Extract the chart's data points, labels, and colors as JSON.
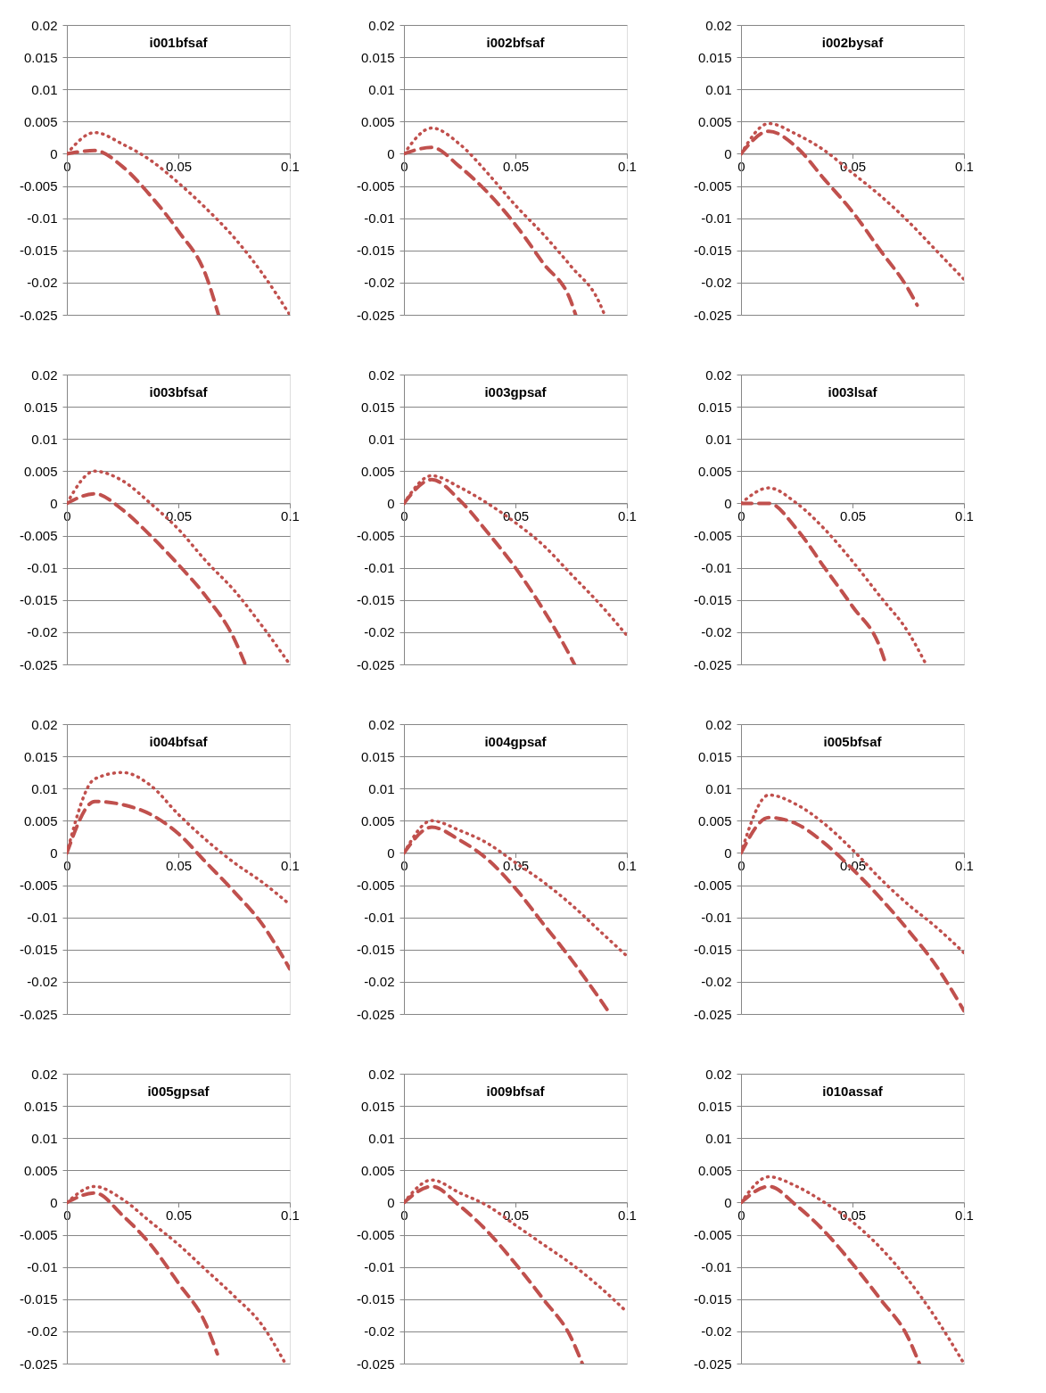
{
  "chart_data": [
    {
      "type": "line",
      "title": "i001bfsaf",
      "xlim": [
        0,
        0.1
      ],
      "xticks": [
        0,
        0.05,
        0.1
      ],
      "ylim": [
        -0.025,
        0.02
      ],
      "yticks": [
        -0.025,
        -0.02,
        -0.015,
        -0.01,
        -0.005,
        0,
        0.005,
        0.01,
        0.015,
        0.02
      ],
      "grid": "y",
      "legend": false,
      "marker": "none",
      "series": [
        {
          "color": "#c0504d",
          "line_style": "dotted",
          "x": [
            0,
            0.0125,
            0.025,
            0.0375,
            0.05,
            0.0625,
            0.075,
            0.0875,
            0.1
          ],
          "values": [
            0,
            0.0033,
            0.0015,
            -0.001,
            -0.0045,
            -0.0085,
            -0.013,
            -0.0185,
            -0.025
          ]
        },
        {
          "color": "#c0504d",
          "line_style": "dashed",
          "x": [
            0,
            0.0125,
            0.025,
            0.0375,
            0.05,
            0.0625,
            0.068
          ],
          "values": [
            0,
            0.0005,
            -0.002,
            -0.0065,
            -0.012,
            -0.019,
            -0.025
          ]
        }
      ]
    },
    {
      "type": "line",
      "title": "i002bfsaf",
      "xlim": [
        0,
        0.1
      ],
      "xticks": [
        0,
        0.05,
        0.1
      ],
      "ylim": [
        -0.025,
        0.02
      ],
      "yticks": [
        -0.025,
        -0.02,
        -0.015,
        -0.01,
        -0.005,
        0,
        0.005,
        0.01,
        0.015,
        0.02
      ],
      "grid": "y",
      "legend": false,
      "marker": "none",
      "series": [
        {
          "color": "#c0504d",
          "line_style": "dotted",
          "x": [
            0,
            0.0125,
            0.025,
            0.0375,
            0.05,
            0.0625,
            0.075,
            0.0875,
            0.09
          ],
          "values": [
            0,
            0.004,
            0.0015,
            -0.003,
            -0.008,
            -0.0125,
            -0.0175,
            -0.023,
            -0.025
          ]
        },
        {
          "color": "#c0504d",
          "line_style": "dashed",
          "x": [
            0,
            0.0125,
            0.025,
            0.0375,
            0.05,
            0.0625,
            0.075,
            0.077
          ],
          "values": [
            0,
            0.001,
            -0.002,
            -0.006,
            -0.011,
            -0.017,
            -0.023,
            -0.025
          ]
        }
      ]
    },
    {
      "type": "line",
      "title": "i002bysaf",
      "xlim": [
        0,
        0.1
      ],
      "xticks": [
        0,
        0.05,
        0.1
      ],
      "ylim": [
        -0.025,
        0.02
      ],
      "yticks": [
        -0.025,
        -0.02,
        -0.015,
        -0.01,
        -0.005,
        0,
        0.005,
        0.01,
        0.015,
        0.02
      ],
      "grid": "y",
      "legend": false,
      "marker": "none",
      "series": [
        {
          "color": "#c0504d",
          "line_style": "dotted",
          "x": [
            0,
            0.0125,
            0.025,
            0.0375,
            0.05,
            0.0625,
            0.075,
            0.0875,
            0.1
          ],
          "values": [
            0,
            0.0047,
            0.003,
            0.0005,
            -0.003,
            -0.0065,
            -0.0105,
            -0.015,
            -0.0195
          ]
        },
        {
          "color": "#c0504d",
          "line_style": "dashed",
          "x": [
            0,
            0.0125,
            0.025,
            0.0375,
            0.05,
            0.0625,
            0.075,
            0.079
          ],
          "values": [
            0,
            0.0035,
            0.001,
            -0.004,
            -0.009,
            -0.015,
            -0.021,
            -0.0235
          ]
        }
      ]
    },
    {
      "type": "line",
      "title": "i003bfsaf",
      "xlim": [
        0,
        0.1
      ],
      "xticks": [
        0,
        0.05,
        0.1
      ],
      "ylim": [
        -0.025,
        0.02
      ],
      "yticks": [
        -0.025,
        -0.02,
        -0.015,
        -0.01,
        -0.005,
        0,
        0.005,
        0.01,
        0.015,
        0.02
      ],
      "grid": "y",
      "legend": false,
      "marker": "none",
      "series": [
        {
          "color": "#c0504d",
          "line_style": "dotted",
          "x": [
            0,
            0.0125,
            0.025,
            0.0375,
            0.05,
            0.0625,
            0.075,
            0.0875,
            0.1
          ],
          "values": [
            0,
            0.005,
            0.0035,
            0,
            -0.004,
            -0.009,
            -0.0135,
            -0.019,
            -0.025
          ]
        },
        {
          "color": "#c0504d",
          "line_style": "dashed",
          "x": [
            0,
            0.0125,
            0.025,
            0.0375,
            0.05,
            0.0625,
            0.075,
            0.08
          ],
          "values": [
            0,
            0.0015,
            -0.001,
            -0.005,
            -0.0095,
            -0.0145,
            -0.021,
            -0.025
          ]
        }
      ]
    },
    {
      "type": "line",
      "title": "i003gpsaf",
      "xlim": [
        0,
        0.1
      ],
      "xticks": [
        0,
        0.05,
        0.1
      ],
      "ylim": [
        -0.025,
        0.02
      ],
      "yticks": [
        -0.025,
        -0.02,
        -0.015,
        -0.01,
        -0.005,
        0,
        0.005,
        0.01,
        0.015,
        0.02
      ],
      "grid": "y",
      "legend": false,
      "marker": "none",
      "series": [
        {
          "color": "#c0504d",
          "line_style": "dotted",
          "x": [
            0,
            0.0125,
            0.025,
            0.0375,
            0.05,
            0.0625,
            0.075,
            0.0875,
            0.1
          ],
          "values": [
            0,
            0.0043,
            0.0025,
            0,
            -0.003,
            -0.0065,
            -0.011,
            -0.0155,
            -0.0205
          ]
        },
        {
          "color": "#c0504d",
          "line_style": "dashed",
          "x": [
            0,
            0.0125,
            0.025,
            0.0375,
            0.05,
            0.0625,
            0.075,
            0.0765
          ],
          "values": [
            0,
            0.0037,
            0.0005,
            -0.0045,
            -0.01,
            -0.0165,
            -0.024,
            -0.025
          ]
        }
      ]
    },
    {
      "type": "line",
      "title": "i003lsaf",
      "xlim": [
        0,
        0.1
      ],
      "xticks": [
        0,
        0.05,
        0.1
      ],
      "ylim": [
        -0.025,
        0.02
      ],
      "yticks": [
        -0.025,
        -0.02,
        -0.015,
        -0.01,
        -0.005,
        0,
        0.005,
        0.01,
        0.015,
        0.02
      ],
      "grid": "y",
      "legend": false,
      "marker": "none",
      "series": [
        {
          "color": "#c0504d",
          "line_style": "dotted",
          "x": [
            0,
            0.0125,
            0.025,
            0.0375,
            0.05,
            0.0625,
            0.075,
            0.083
          ],
          "values": [
            0,
            0.0024,
            0,
            -0.004,
            -0.009,
            -0.0145,
            -0.02,
            -0.025
          ]
        },
        {
          "color": "#c0504d",
          "line_style": "dashed",
          "x": [
            0,
            0.0125,
            0.025,
            0.0375,
            0.05,
            0.0625,
            0.065
          ],
          "values": [
            0,
            0,
            -0.004,
            -0.01,
            -0.016,
            -0.0225,
            -0.025
          ]
        }
      ]
    },
    {
      "type": "line",
      "title": "i004bfsaf",
      "xlim": [
        0,
        0.1
      ],
      "xticks": [
        0,
        0.05,
        0.1
      ],
      "ylim": [
        -0.025,
        0.02
      ],
      "yticks": [
        -0.025,
        -0.02,
        -0.015,
        -0.01,
        -0.005,
        0,
        0.005,
        0.01,
        0.015,
        0.02
      ],
      "grid": "y",
      "legend": false,
      "marker": "none",
      "series": [
        {
          "color": "#c0504d",
          "line_style": "dotted",
          "x": [
            0,
            0.0125,
            0.025,
            0.0375,
            0.05,
            0.0625,
            0.075,
            0.0875,
            0.1
          ],
          "values": [
            0,
            0.0115,
            0.0125,
            0.0105,
            0.006,
            0.002,
            -0.0015,
            -0.0045,
            -0.008
          ]
        },
        {
          "color": "#c0504d",
          "line_style": "dashed",
          "x": [
            0,
            0.0125,
            0.025,
            0.0375,
            0.05,
            0.0625,
            0.075,
            0.0875,
            0.1
          ],
          "values": [
            0,
            0.008,
            0.0075,
            0.006,
            0.003,
            -0.0015,
            -0.006,
            -0.011,
            -0.018
          ]
        }
      ]
    },
    {
      "type": "line",
      "title": "i004gpsaf",
      "xlim": [
        0,
        0.1
      ],
      "xticks": [
        0,
        0.05,
        0.1
      ],
      "ylim": [
        -0.025,
        0.02
      ],
      "yticks": [
        -0.025,
        -0.02,
        -0.015,
        -0.01,
        -0.005,
        0,
        0.005,
        0.01,
        0.015,
        0.02
      ],
      "grid": "y",
      "legend": false,
      "marker": "none",
      "series": [
        {
          "color": "#c0504d",
          "line_style": "dotted",
          "x": [
            0,
            0.0125,
            0.025,
            0.0375,
            0.05,
            0.0625,
            0.075,
            0.0875,
            0.1
          ],
          "values": [
            0,
            0.005,
            0.0035,
            0.0015,
            -0.0015,
            -0.0045,
            -0.008,
            -0.012,
            -0.016
          ]
        },
        {
          "color": "#c0504d",
          "line_style": "dashed",
          "x": [
            0,
            0.0125,
            0.025,
            0.0375,
            0.05,
            0.0625,
            0.075,
            0.0875,
            0.0925
          ],
          "values": [
            0,
            0.004,
            0.002,
            -0.001,
            -0.0055,
            -0.011,
            -0.0165,
            -0.0225,
            -0.025
          ]
        }
      ]
    },
    {
      "type": "line",
      "title": "i005bfsaf",
      "xlim": [
        0,
        0.1
      ],
      "xticks": [
        0,
        0.05,
        0.1
      ],
      "ylim": [
        -0.025,
        0.02
      ],
      "yticks": [
        -0.025,
        -0.02,
        -0.015,
        -0.01,
        -0.005,
        0,
        0.005,
        0.01,
        0.015,
        0.02
      ],
      "grid": "y",
      "legend": false,
      "marker": "none",
      "series": [
        {
          "color": "#c0504d",
          "line_style": "dotted",
          "x": [
            0,
            0.0125,
            0.025,
            0.0375,
            0.05,
            0.0625,
            0.075,
            0.0875,
            0.1
          ],
          "values": [
            0,
            0.009,
            0.0075,
            0.0045,
            0.0005,
            -0.004,
            -0.008,
            -0.0115,
            -0.0155
          ]
        },
        {
          "color": "#c0504d",
          "line_style": "dashed",
          "x": [
            0,
            0.0125,
            0.025,
            0.0375,
            0.05,
            0.0625,
            0.075,
            0.0875,
            0.1
          ],
          "values": [
            0,
            0.0055,
            0.0045,
            0.0015,
            -0.0025,
            -0.007,
            -0.012,
            -0.0175,
            -0.0245
          ]
        }
      ]
    },
    {
      "type": "line",
      "title": "i005gpsaf",
      "xlim": [
        0,
        0.1
      ],
      "xticks": [
        0,
        0.05,
        0.1
      ],
      "ylim": [
        -0.025,
        0.02
      ],
      "yticks": [
        -0.025,
        -0.02,
        -0.015,
        -0.01,
        -0.005,
        0,
        0.005,
        0.01,
        0.015,
        0.02
      ],
      "grid": "y",
      "legend": false,
      "marker": "none",
      "series": [
        {
          "color": "#c0504d",
          "line_style": "dotted",
          "x": [
            0,
            0.0125,
            0.025,
            0.0375,
            0.05,
            0.0625,
            0.075,
            0.0875,
            0.098
          ],
          "values": [
            0,
            0.0025,
            0.0005,
            -0.003,
            -0.0065,
            -0.0105,
            -0.0145,
            -0.019,
            -0.025
          ]
        },
        {
          "color": "#c0504d",
          "line_style": "dashed",
          "x": [
            0,
            0.0125,
            0.025,
            0.0375,
            0.05,
            0.0625,
            0.0675
          ],
          "values": [
            0,
            0.0015,
            -0.002,
            -0.0065,
            -0.0125,
            -0.019,
            -0.0235
          ]
        }
      ]
    },
    {
      "type": "line",
      "title": "i009bfsaf",
      "xlim": [
        0,
        0.1
      ],
      "xticks": [
        0,
        0.05,
        0.1
      ],
      "ylim": [
        -0.025,
        0.02
      ],
      "yticks": [
        -0.025,
        -0.02,
        -0.015,
        -0.01,
        -0.005,
        0,
        0.005,
        0.01,
        0.015,
        0.02
      ],
      "grid": "y",
      "legend": false,
      "marker": "none",
      "series": [
        {
          "color": "#c0504d",
          "line_style": "dotted",
          "x": [
            0,
            0.0125,
            0.025,
            0.0375,
            0.05,
            0.0625,
            0.075,
            0.0875,
            0.1
          ],
          "values": [
            0,
            0.0035,
            0.0015,
            -0.0005,
            -0.0035,
            -0.0065,
            -0.0095,
            -0.013,
            -0.017
          ]
        },
        {
          "color": "#c0504d",
          "line_style": "dashed",
          "x": [
            0,
            0.0125,
            0.025,
            0.0375,
            0.05,
            0.0625,
            0.075,
            0.08
          ],
          "values": [
            0,
            0.0025,
            -0.0005,
            -0.0045,
            -0.0095,
            -0.015,
            -0.021,
            -0.025
          ]
        }
      ]
    },
    {
      "type": "line",
      "title": "i010assaf",
      "xlim": [
        0,
        0.1
      ],
      "xticks": [
        0,
        0.05,
        0.1
      ],
      "ylim": [
        -0.025,
        0.02
      ],
      "yticks": [
        -0.025,
        -0.02,
        -0.015,
        -0.01,
        -0.005,
        0,
        0.005,
        0.01,
        0.015,
        0.02
      ],
      "grid": "y",
      "legend": false,
      "marker": "none",
      "series": [
        {
          "color": "#c0504d",
          "line_style": "dotted",
          "x": [
            0,
            0.0125,
            0.025,
            0.0375,
            0.05,
            0.0625,
            0.075,
            0.0875,
            0.1
          ],
          "values": [
            0,
            0.004,
            0.0025,
            0,
            -0.003,
            -0.007,
            -0.012,
            -0.018,
            -0.025
          ]
        },
        {
          "color": "#c0504d",
          "line_style": "dashed",
          "x": [
            0,
            0.0125,
            0.025,
            0.0375,
            0.05,
            0.0625,
            0.075,
            0.08
          ],
          "values": [
            0,
            0.0025,
            -0.0005,
            -0.0045,
            -0.0095,
            -0.015,
            -0.021,
            -0.025
          ]
        }
      ]
    }
  ]
}
